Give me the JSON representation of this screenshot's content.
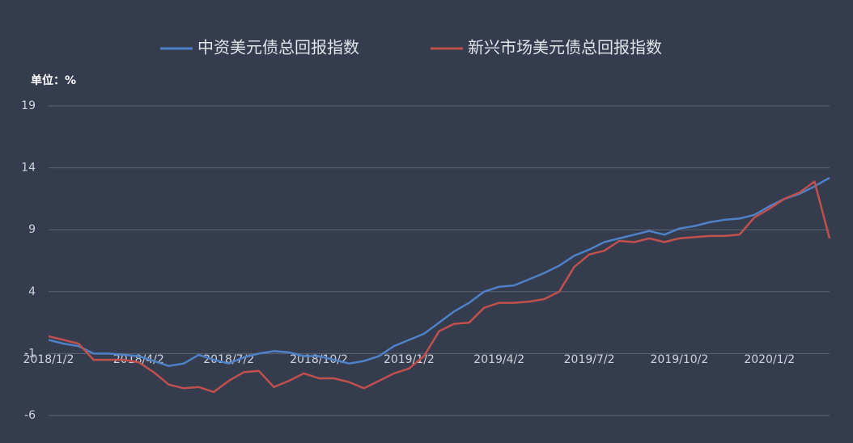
{
  "chart_data": {
    "type": "line",
    "unit_label": "单位：%",
    "categories": [
      "2018/1/2",
      null,
      null,
      null,
      null,
      null,
      "2018/4/2",
      null,
      null,
      null,
      null,
      null,
      "2018/7/2",
      null,
      null,
      null,
      null,
      null,
      "2018/10/2",
      null,
      null,
      null,
      null,
      null,
      "2019/1/2",
      null,
      null,
      null,
      null,
      null,
      "2019/4/2",
      null,
      null,
      null,
      null,
      null,
      "2019/7/2",
      null,
      null,
      null,
      null,
      null,
      "2019/10/2",
      null,
      null,
      null,
      null,
      null,
      "2020/1/2",
      null,
      null,
      null,
      null
    ],
    "series": [
      {
        "name": "中资美元债总回报指数",
        "color": "#4f81c7",
        "values": [
          0.1,
          -0.2,
          -0.4,
          -1.0,
          -1.0,
          -1.1,
          -1.2,
          -1.6,
          -2.0,
          -1.8,
          -1.1,
          -1.5,
          -1.8,
          -1.3,
          -1.0,
          -0.8,
          -0.9,
          -1.2,
          -1.2,
          -1.5,
          -1.8,
          -1.6,
          -1.2,
          -0.4,
          0.1,
          0.6,
          1.5,
          2.4,
          3.1,
          4.0,
          4.4,
          4.5,
          5.0,
          5.5,
          6.1,
          6.9,
          7.4,
          8.0,
          8.3,
          8.6,
          8.9,
          8.6,
          9.1,
          9.3,
          9.6,
          9.8,
          9.9,
          10.2,
          10.9,
          11.5,
          11.9,
          12.5,
          13.2
        ]
      },
      {
        "name": "新兴市场美元债总回报指数",
        "color": "#c0504d",
        "values": [
          0.4,
          0.1,
          -0.2,
          -1.5,
          -1.5,
          -1.5,
          -1.7,
          -2.5,
          -3.5,
          -3.8,
          -3.7,
          -4.1,
          -3.2,
          -2.5,
          -2.4,
          -3.7,
          -3.2,
          -2.6,
          -3.0,
          -3.0,
          -3.3,
          -3.8,
          -3.2,
          -2.6,
          -2.2,
          -1.2,
          0.8,
          1.4,
          1.5,
          2.7,
          3.1,
          3.1,
          3.2,
          3.4,
          4.0,
          6.0,
          7.0,
          7.3,
          8.1,
          8.0,
          8.3,
          8.0,
          8.3,
          8.4,
          8.5,
          8.5,
          8.6,
          10.0,
          10.7,
          11.5,
          12.0,
          12.9,
          8.3
        ]
      }
    ],
    "ylim": [
      -6,
      19
    ],
    "yticks": [
      -6,
      -1,
      4,
      9,
      14,
      19
    ],
    "grid": true
  }
}
